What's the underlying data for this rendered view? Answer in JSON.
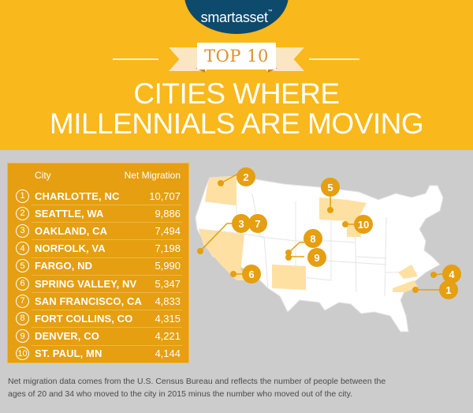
{
  "header": {
    "brand": "smartasset",
    "brand_tm": "™",
    "badge": "TOP 10",
    "title_line1": "CITIES WHERE",
    "title_line2": "MILLENNIALS ARE MOVING"
  },
  "colors": {
    "header_bg": "#f9b81b",
    "logo_bg": "#0d4a6b",
    "table_bg": "#e59f10",
    "page_bg": "#cccccc",
    "highlight_state": "#ffe0a3",
    "marker": "#e59f10",
    "ribbon_text": "#e08f27"
  },
  "table": {
    "col_city": "City",
    "col_value": "Net Migration",
    "rows": [
      {
        "rank": "1",
        "city": "CHARLOTTE, NC",
        "value": "10,707"
      },
      {
        "rank": "2",
        "city": "SEATTLE, WA",
        "value": "9,886"
      },
      {
        "rank": "3",
        "city": "OAKLAND, CA",
        "value": "7,494"
      },
      {
        "rank": "4",
        "city": "NORFOLK, VA",
        "value": "7,198"
      },
      {
        "rank": "5",
        "city": "FARGO, ND",
        "value": "5,990"
      },
      {
        "rank": "6",
        "city": "SPRING VALLEY, NV",
        "value": "5,347"
      },
      {
        "rank": "7",
        "city": "SAN FRANCISCO, CA",
        "value": "4,833"
      },
      {
        "rank": "8",
        "city": "FORT COLLINS, CO",
        "value": "4,315"
      },
      {
        "rank": "9",
        "city": "DENVER, CO",
        "value": "4,221"
      },
      {
        "rank": "10",
        "city": "ST. PAUL, MN",
        "value": "4,144"
      }
    ]
  },
  "map": {
    "markers": [
      {
        "label": "1"
      },
      {
        "label": "2"
      },
      {
        "label": "3"
      },
      {
        "label": "4"
      },
      {
        "label": "5"
      },
      {
        "label": "6"
      },
      {
        "label": "7"
      },
      {
        "label": "8"
      },
      {
        "label": "9"
      },
      {
        "label": "10"
      }
    ]
  },
  "footnote": {
    "line1": "Net migration data comes from the U.S. Census Bureau and reflects the number of people between the",
    "line2": "ages of 20 and 34 who moved to the city in 2015 minus the number who moved out of the city."
  }
}
